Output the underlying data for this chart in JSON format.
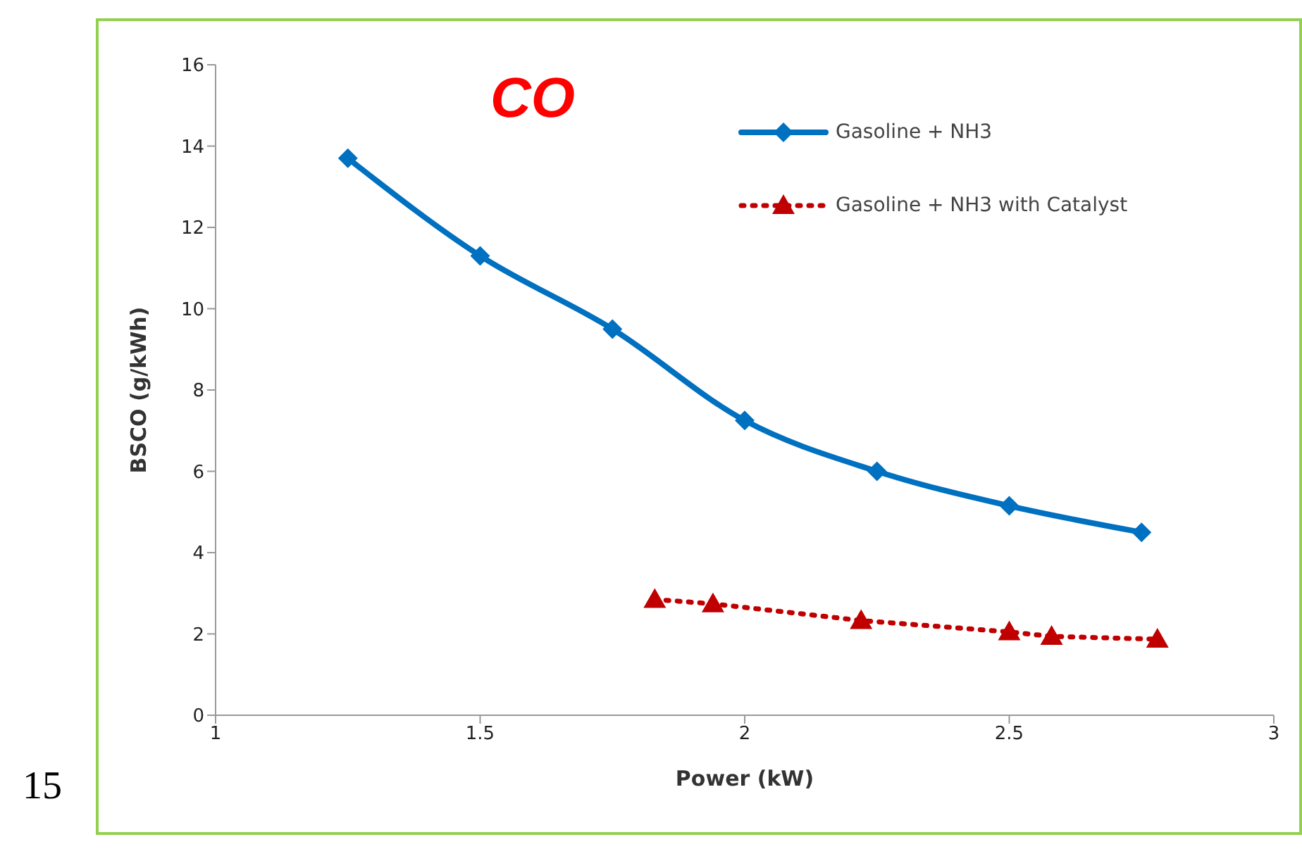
{
  "chart_data": {
    "type": "line",
    "title": "CO",
    "xlabel": "Power (kW)",
    "ylabel": "BSCO (g/kWh)",
    "xlim": [
      1,
      3
    ],
    "xticks": [
      1,
      1.5,
      2,
      2.5,
      3
    ],
    "ylim": [
      0,
      16
    ],
    "yticks": [
      0,
      2,
      4,
      6,
      8,
      10,
      12,
      14,
      16
    ],
    "grid": false,
    "legend": "top right",
    "annotations": [
      "15"
    ],
    "series": [
      {
        "name": "Gasoline + NH3",
        "color": "#0070c0",
        "marker": "diamond",
        "line_style": "solid",
        "x": [
          1.25,
          1.5,
          1.75,
          2,
          2.25,
          2.5,
          2.75
        ],
        "values": [
          13.7,
          11.3,
          9.5,
          7.25,
          6.0,
          5.15,
          4.5
        ]
      },
      {
        "name": "Gasoline + NH3 with Catalyst",
        "color": "#c00000",
        "marker": "triangle",
        "line_style": "dotted",
        "x": [
          1.83,
          1.94,
          2.22,
          2.5,
          2.58,
          2.78
        ],
        "values": [
          2.85,
          2.74,
          2.33,
          2.05,
          1.94,
          1.87
        ]
      }
    ]
  }
}
